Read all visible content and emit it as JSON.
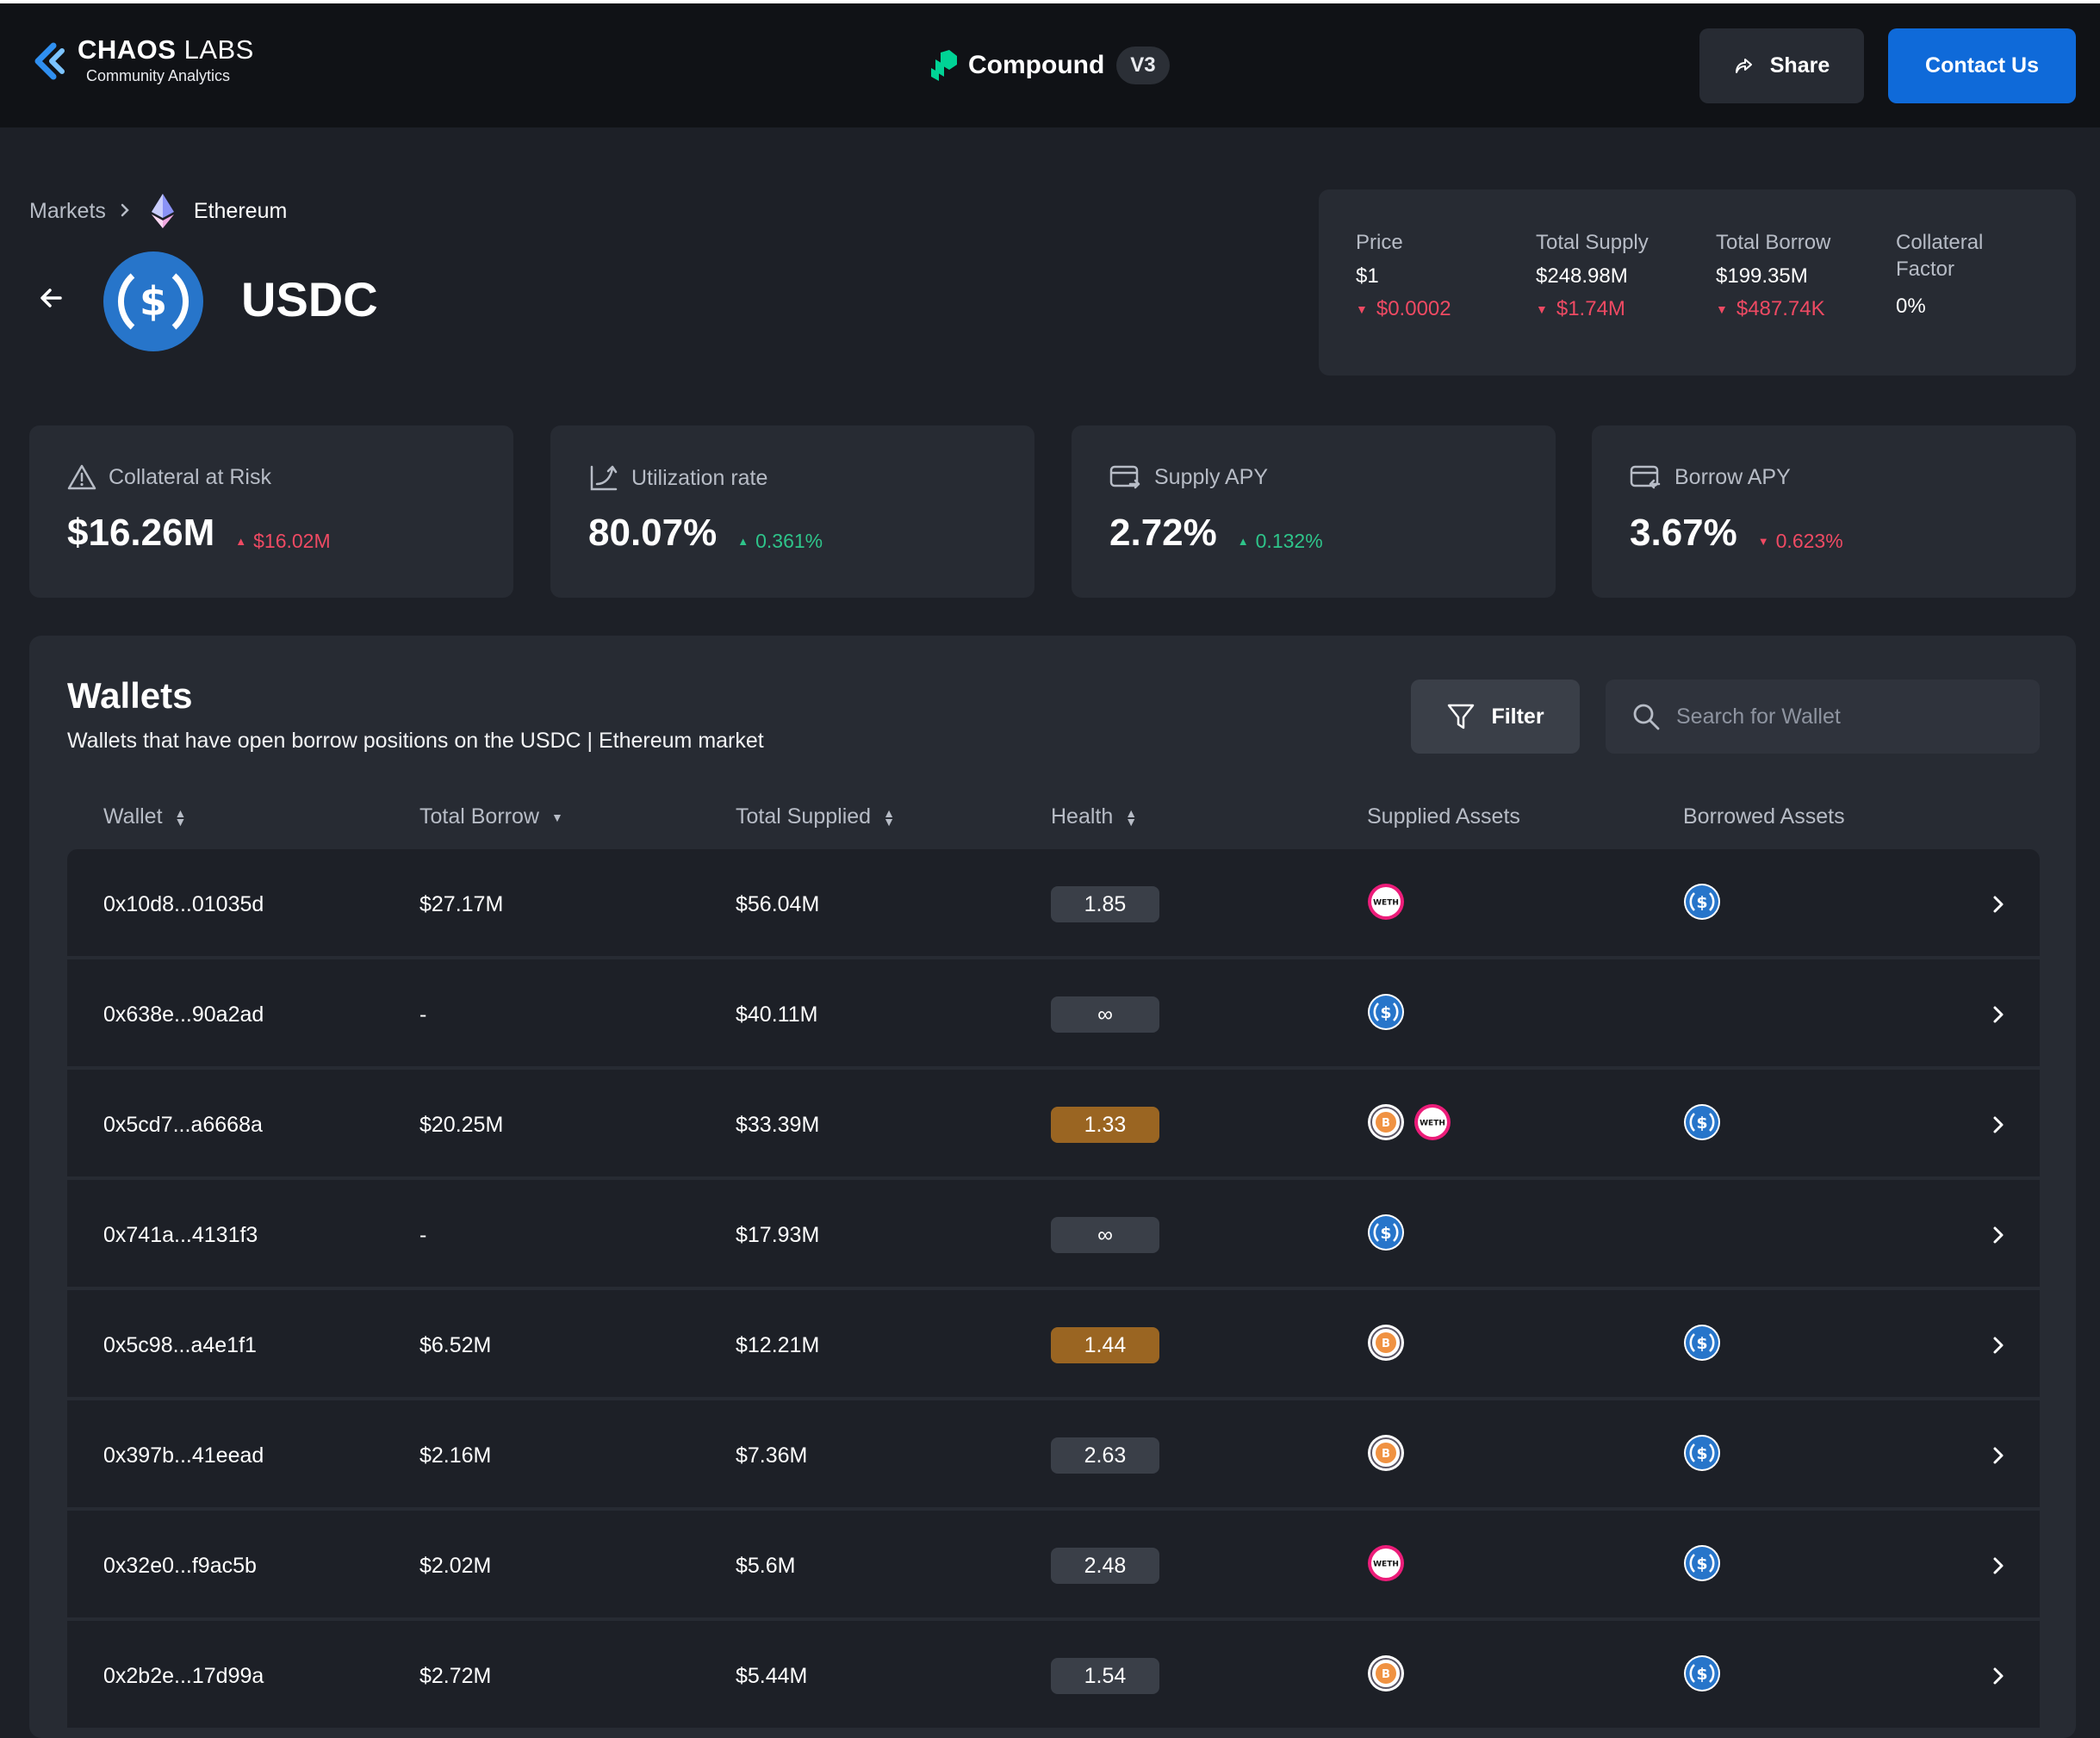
{
  "navbar": {
    "brand_name_bold": "CHAOS",
    "brand_name_light": "LABS",
    "brand_sub": "Community Analytics",
    "protocol_name": "Compound",
    "version": "V3",
    "share_label": "Share",
    "contact_label": "Contact Us"
  },
  "breadcrumb": {
    "markets": "Markets",
    "network": "Ethereum"
  },
  "asset": {
    "symbol": "USDC"
  },
  "stats": {
    "price": {
      "label": "Price",
      "value": "$1",
      "delta": "$0.0002"
    },
    "total_supply": {
      "label": "Total Supply",
      "value": "$248.98M",
      "delta": "$1.74M"
    },
    "total_borrow": {
      "label": "Total Borrow",
      "value": "$199.35M",
      "delta": "$487.74K"
    },
    "collateral_factor": {
      "label_line1": "Collateral",
      "label_line2": "Factor",
      "value": "0%"
    }
  },
  "metrics": [
    {
      "label": "Collateral at Risk",
      "value": "$16.26M",
      "delta": "$16.02M",
      "direction": "up",
      "color": "#ef4a63",
      "icon": "warning-icon"
    },
    {
      "label": "Utilization rate",
      "value": "80.07%",
      "delta": "0.361%",
      "direction": "up",
      "color": "#2ec48a",
      "icon": "utilization-icon"
    },
    {
      "label": "Supply APY",
      "value": "2.72%",
      "delta": "0.132%",
      "direction": "up",
      "color": "#2ec48a",
      "icon": "supply-card-icon"
    },
    {
      "label": "Borrow APY",
      "value": "3.67%",
      "delta": "0.623%",
      "direction": "down",
      "color": "#ef4a63",
      "icon": "borrow-card-icon"
    }
  ],
  "wallets": {
    "title": "Wallets",
    "subtitle": "Wallets that have open borrow positions on the USDC | Ethereum market",
    "filter_label": "Filter",
    "search_placeholder": "Search for Wallet",
    "columns": [
      "Wallet",
      "Total Borrow",
      "Total Supplied",
      "Health",
      "Supplied Assets",
      "Borrowed Assets"
    ],
    "rows": [
      {
        "wallet": "0x10d8...01035d",
        "borrow": "$27.17M",
        "supplied": "$56.04M",
        "health": "1.85",
        "health_warn": false,
        "supplied_assets": [
          "WETH"
        ],
        "borrowed_assets": [
          "USDC"
        ]
      },
      {
        "wallet": "0x638e...90a2ad",
        "borrow": "-",
        "supplied": "$40.11M",
        "health": "∞",
        "health_warn": false,
        "supplied_assets": [
          "USDC"
        ],
        "borrowed_assets": []
      },
      {
        "wallet": "0x5cd7...a6668a",
        "borrow": "$20.25M",
        "supplied": "$33.39M",
        "health": "1.33",
        "health_warn": true,
        "supplied_assets": [
          "WBTC",
          "WETH"
        ],
        "borrowed_assets": [
          "USDC"
        ]
      },
      {
        "wallet": "0x741a...4131f3",
        "borrow": "-",
        "supplied": "$17.93M",
        "health": "∞",
        "health_warn": false,
        "supplied_assets": [
          "USDC"
        ],
        "borrowed_assets": []
      },
      {
        "wallet": "0x5c98...a4e1f1",
        "borrow": "$6.52M",
        "supplied": "$12.21M",
        "health": "1.44",
        "health_warn": true,
        "supplied_assets": [
          "WBTC"
        ],
        "borrowed_assets": [
          "USDC"
        ]
      },
      {
        "wallet": "0x397b...41eead",
        "borrow": "$2.16M",
        "supplied": "$7.36M",
        "health": "2.63",
        "health_warn": false,
        "supplied_assets": [
          "WBTC"
        ],
        "borrowed_assets": [
          "USDC"
        ]
      },
      {
        "wallet": "0x32e0...f9ac5b",
        "borrow": "$2.02M",
        "supplied": "$5.6M",
        "health": "2.48",
        "health_warn": false,
        "supplied_assets": [
          "WETH"
        ],
        "borrowed_assets": [
          "USDC"
        ]
      },
      {
        "wallet": "0x2b2e...17d99a",
        "borrow": "$2.72M",
        "supplied": "$5.44M",
        "health": "1.54",
        "health_warn": false,
        "supplied_assets": [
          "WBTC"
        ],
        "borrowed_assets": [
          "USDC"
        ]
      }
    ]
  }
}
